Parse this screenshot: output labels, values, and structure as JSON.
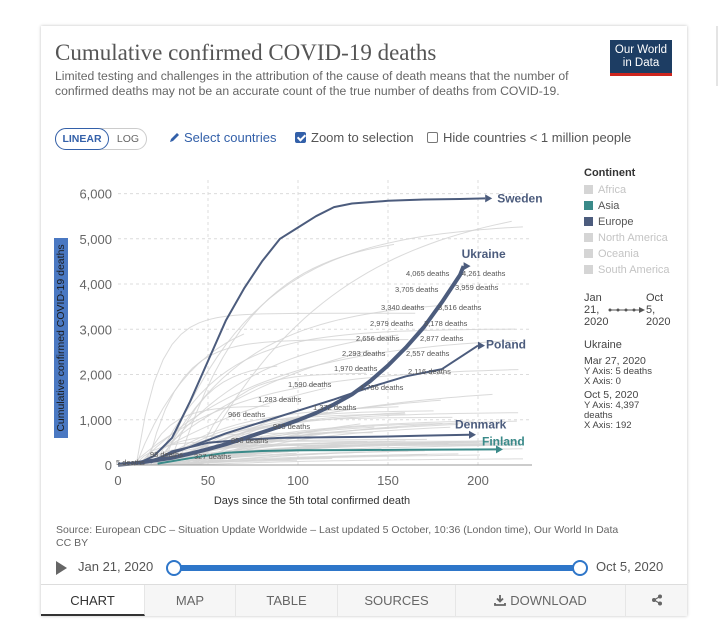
{
  "header": {
    "title": "Cumulative confirmed COVID-19 deaths",
    "subtitle": "Limited testing and challenges in the attribution of the cause of death means that the number of confirmed deaths may not be an accurate count of the true number of deaths from COVID-19.",
    "logo_line1": "Our World",
    "logo_line2": "in Data"
  },
  "controls": {
    "linear_label": "LINEAR",
    "log_label": "LOG",
    "select_countries_label": "Select countries",
    "zoom_label": "Zoom to selection",
    "zoom_checked": true,
    "hide_label": "Hide countries < 1 million people",
    "hide_checked": false
  },
  "legend": {
    "title": "Continent",
    "items": [
      {
        "label": "Africa",
        "color": "#d5d5d5",
        "active": false
      },
      {
        "label": "Asia",
        "color": "#3a8a89",
        "active": true
      },
      {
        "label": "Europe",
        "color": "#4c5c7d",
        "active": true
      },
      {
        "label": "North America",
        "color": "#d5d5d5",
        "active": false
      },
      {
        "label": "Oceania",
        "color": "#d5d5d5",
        "active": false
      },
      {
        "label": "South America",
        "color": "#d5d5d5",
        "active": false
      }
    ]
  },
  "time_range": {
    "start_l1": "Jan",
    "start_l2": "21,",
    "start_l3": "2020",
    "end_l1": "Oct",
    "end_l2": "5,",
    "end_l3": "2020"
  },
  "info_panel": {
    "country": "Ukraine",
    "start": {
      "date": "Mar 27, 2020",
      "y": "Y Axis: 5 deaths",
      "x": "X Axis: 0"
    },
    "end": {
      "date": "Oct 5, 2020",
      "y": "Y Axis: 4,397",
      "y2": "deaths",
      "x": "X Axis: 192"
    }
  },
  "source": {
    "line1": "Source: European CDC – Situation Update Worldwide – Last updated 5 October, 10:36 (London time), Our World In Data",
    "line2": "CC BY"
  },
  "timeline": {
    "start_label": "Jan 21, 2020",
    "end_label": "Oct 5, 2020"
  },
  "tabs": [
    {
      "label": "CHART",
      "active": true
    },
    {
      "label": "MAP",
      "active": false
    },
    {
      "label": "TABLE",
      "active": false
    },
    {
      "label": "SOURCES",
      "active": false
    },
    {
      "label": "DOWNLOAD",
      "active": false
    },
    {
      "label": "",
      "active": false
    }
  ],
  "chart_data": {
    "type": "line",
    "title": "Cumulative confirmed COVID-19 deaths",
    "xlabel": "Days since the 5th total confirmed death",
    "ylabel": "Cumulative confirmed COVID-19 deaths",
    "xlim": [
      0,
      230
    ],
    "ylim": [
      0,
      6300
    ],
    "x_ticks": [
      0,
      50,
      100,
      150,
      200
    ],
    "y_ticks": [
      0,
      1000,
      2000,
      3000,
      4000,
      5000,
      6000
    ],
    "y_tick_labels": [
      "0",
      "1,000",
      "2,000",
      "3,000",
      "4,000",
      "5,000",
      "6,000"
    ],
    "grid": true,
    "series": [
      {
        "name": "Sweden",
        "color": "#4c5c7d",
        "x": [
          9,
          20,
          30,
          40,
          50,
          60,
          70,
          80,
          90,
          100,
          110,
          120,
          130,
          150,
          170,
          190,
          204
        ],
        "y": [
          0,
          200,
          600,
          1400,
          2300,
          3200,
          3900,
          4500,
          5000,
          5250,
          5500,
          5700,
          5780,
          5840,
          5870,
          5880,
          5893
        ]
      },
      {
        "name": "Ukraine",
        "color": "#4c5c7d",
        "x": [
          0,
          10,
          20,
          30,
          40,
          50,
          60,
          70,
          80,
          90,
          100,
          110,
          120,
          130,
          140,
          150,
          160,
          170,
          180,
          190,
          192
        ],
        "y": [
          5,
          40,
          100,
          160,
          250,
          350,
          460,
          590,
          720,
          850,
          990,
          1150,
          1340,
          1560,
          1850,
          2200,
          2600,
          3050,
          3600,
          4200,
          4397
        ]
      },
      {
        "name": "Poland",
        "color": "#4c5c7d",
        "x": [
          20,
          40,
          60,
          80,
          100,
          120,
          140,
          160,
          180,
          200
        ],
        "y": [
          120,
          400,
          700,
          950,
          1200,
          1450,
          1720,
          1960,
          2120,
          2640
        ]
      },
      {
        "name": "Denmark",
        "color": "#4c5c7d",
        "x": [
          18,
          30,
          50,
          70,
          90,
          110,
          130,
          150,
          170,
          195
        ],
        "y": [
          50,
          300,
          490,
          560,
          600,
          610,
          620,
          630,
          650,
          670
        ]
      },
      {
        "name": "Finland",
        "color": "#3a8a89",
        "x": [
          22,
          40,
          60,
          80,
          100,
          130,
          160,
          195,
          210
        ],
        "y": [
          30,
          150,
          270,
          310,
          325,
          330,
          335,
          343,
          345
        ]
      }
    ],
    "annotations": [
      "5 deaths",
      "98 deaths",
      "327 deaths",
      "858 deaths",
      "965 deaths",
      "966 deaths",
      "1,283 deaths",
      "1,372 deaths",
      "1,590 deaths",
      "1,786 deaths",
      "1,970 deaths",
      "2,116 deaths",
      "2,293 deaths",
      "2,557 deaths",
      "2,656 deaths",
      "2,877 deaths",
      "2,979 deaths",
      "3,178 deaths",
      "3,340 deaths",
      "3,516 deaths",
      "3,705 deaths",
      "3,959 deaths",
      "4,065 deaths",
      "4,261 deaths"
    ]
  }
}
